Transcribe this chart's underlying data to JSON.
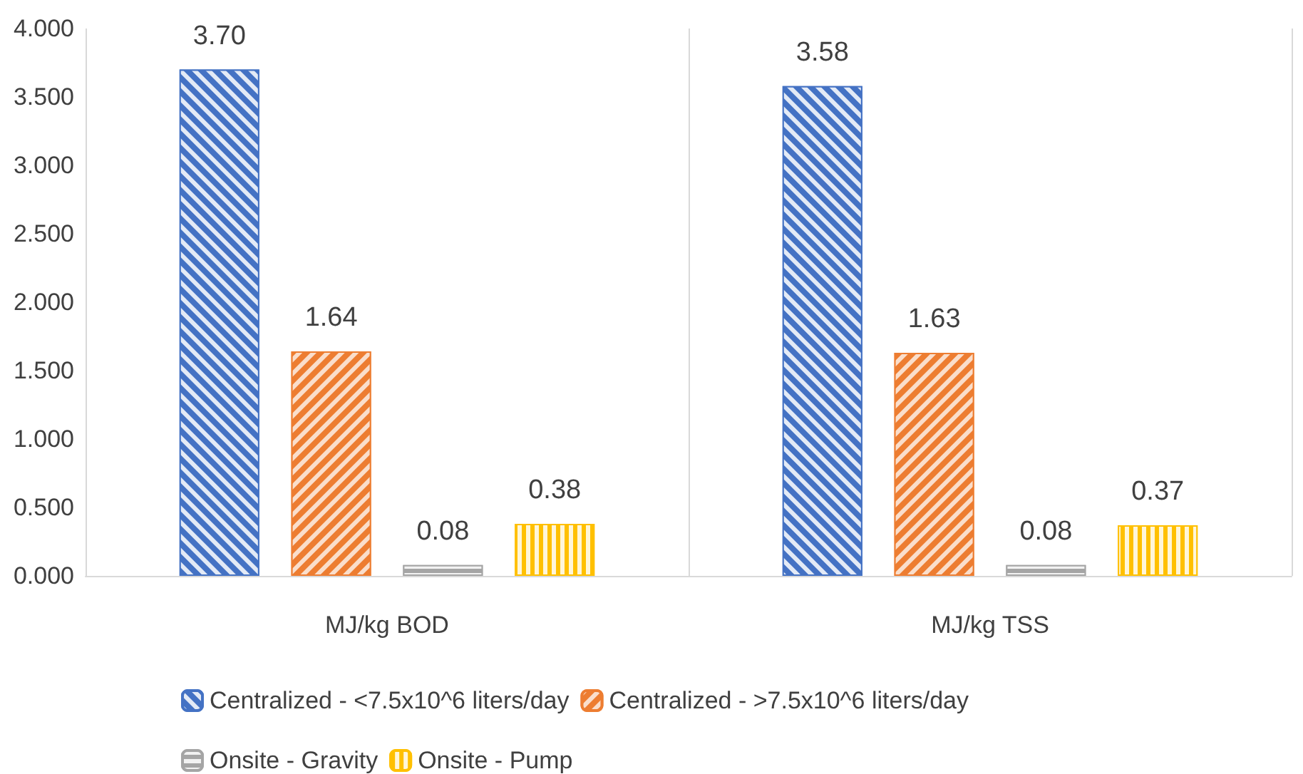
{
  "chart_data": {
    "type": "bar",
    "categories": [
      "MJ/kg BOD",
      "MJ/kg TSS"
    ],
    "series": [
      {
        "name": "Centralized - <7.5x10^6 liters/day",
        "color": "#4472c4",
        "values": [
          3.7,
          3.58
        ],
        "value_labels": [
          "3.70",
          "3.58"
        ]
      },
      {
        "name": "Centralized - >7.5x10^6 liters/day",
        "color": "#ed7d31",
        "values": [
          1.64,
          1.63
        ],
        "value_labels": [
          "1.64",
          "1.63"
        ]
      },
      {
        "name": "Onsite - Gravity",
        "color": "#a5a5a5",
        "values": [
          0.08,
          0.08
        ],
        "value_labels": [
          "0.08",
          "0.08"
        ]
      },
      {
        "name": "Onsite - Pump",
        "color": "#ffc000",
        "values": [
          0.38,
          0.37
        ],
        "value_labels": [
          "0.38",
          "0.37"
        ]
      }
    ],
    "ylim": [
      0,
      4
    ],
    "yticks": [
      {
        "value": 0,
        "label": "0.000"
      },
      {
        "value": 0.5,
        "label": "0.500"
      },
      {
        "value": 1,
        "label": "1.000"
      },
      {
        "value": 1.5,
        "label": "1.500"
      },
      {
        "value": 2,
        "label": "2.000"
      },
      {
        "value": 2.5,
        "label": "2.500"
      },
      {
        "value": 3,
        "label": "3.000"
      },
      {
        "value": 3.5,
        "label": "3.500"
      },
      {
        "value": 4,
        "label": "4.000"
      }
    ],
    "grid": "x",
    "legend": "bottom"
  }
}
